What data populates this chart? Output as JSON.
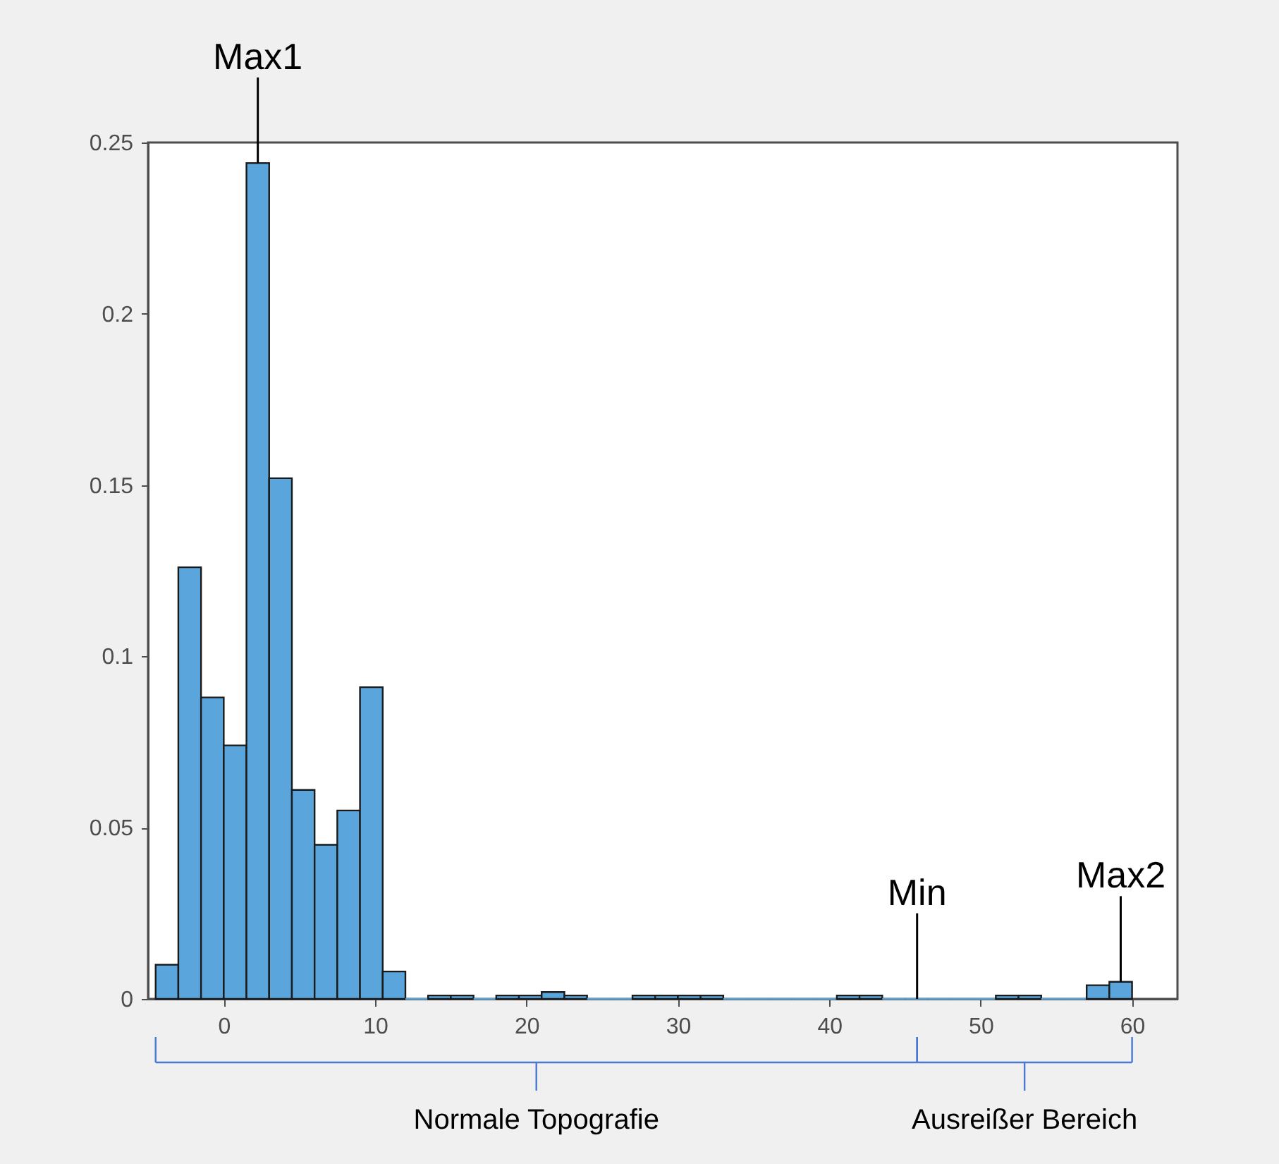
{
  "chart_data": {
    "type": "histogram",
    "bins": [
      -4.5,
      -3,
      -1.5,
      0,
      1.5,
      3,
      4.5,
      6,
      7.5,
      9,
      10.5,
      12,
      13.5,
      15,
      16.5,
      18,
      19.5,
      21,
      22.5,
      24,
      25.5,
      27,
      28.5,
      30,
      31.5,
      33,
      34.5,
      36,
      37.5,
      39,
      40.5,
      42,
      43.5,
      45,
      46.5,
      48,
      49.5,
      51,
      52.5,
      54,
      55.5,
      57,
      58.5,
      60
    ],
    "values": [
      0.01,
      0.126,
      0.088,
      0.074,
      0.244,
      0.152,
      0.061,
      0.045,
      0.055,
      0.091,
      0.008,
      0,
      0.001,
      0.001,
      0,
      0.001,
      0.001,
      0.002,
      0.001,
      0,
      0,
      0.001,
      0.001,
      0.001,
      0.001,
      0,
      0,
      0,
      0,
      0,
      0.001,
      0.001,
      0,
      0,
      0,
      0,
      0,
      0.001,
      0.001,
      0,
      0,
      0.004,
      0.005
    ],
    "color": "#5aa6dc",
    "xlim": [
      -5,
      63
    ],
    "ylim": [
      0,
      0.25
    ],
    "xticks": [
      0,
      10,
      20,
      30,
      40,
      50,
      60
    ],
    "yticks": [
      0,
      0.05,
      0.1,
      0.15,
      0.2,
      0.25
    ],
    "grid": false,
    "annotations": [
      {
        "text": "Max1",
        "x": 2.25,
        "y": 0.244
      },
      {
        "text": "Min",
        "x": 45.8,
        "y": 0
      },
      {
        "text": "Max2",
        "x": 59.25,
        "y": 0.005
      },
      "Normale Topografie",
      "Ausreißer Bereich"
    ]
  }
}
